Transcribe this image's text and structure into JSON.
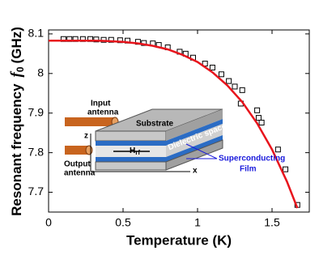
{
  "chart_data": {
    "type": "scatter",
    "xlabel": "Temperature (K)",
    "ylabel": "Resonant frequency",
    "ylabel_symbol": "f",
    "ylabel_sub": "0",
    "ylabel_unit": "(GHz)",
    "xlim": [
      0,
      1.75
    ],
    "ylim": [
      7.65,
      8.11
    ],
    "xticks": [
      0,
      0.5,
      1,
      1.5
    ],
    "yticks": [
      7.7,
      7.8,
      7.9,
      8,
      8.1
    ],
    "series": [
      {
        "type": "scatter",
        "color": "#000000",
        "x": [
          0.1,
          0.14,
          0.18,
          0.23,
          0.28,
          0.32,
          0.37,
          0.42,
          0.48,
          0.53,
          0.6,
          0.64,
          0.7,
          0.74,
          0.8,
          0.88,
          0.92,
          0.97,
          1.05,
          1.1,
          1.16,
          1.21,
          1.25,
          1.3,
          1.29,
          1.4,
          1.41,
          1.43,
          1.54,
          1.59,
          1.67
        ],
        "values": [
          8.087,
          8.087,
          8.087,
          8.087,
          8.087,
          8.086,
          8.085,
          8.085,
          8.084,
          8.083,
          8.08,
          8.077,
          8.076,
          8.072,
          8.066,
          8.055,
          8.05,
          8.04,
          8.025,
          8.015,
          7.998,
          7.981,
          7.967,
          7.958,
          7.924,
          7.907,
          7.888,
          7.876,
          7.808,
          7.758,
          7.668
        ]
      },
      {
        "type": "line",
        "color": "#e8141c",
        "x": [
          0,
          0.1,
          0.2,
          0.3,
          0.4,
          0.5,
          0.6,
          0.7,
          0.8,
          0.9,
          1.0,
          1.1,
          1.2,
          1.3,
          1.4,
          1.5,
          1.6,
          1.67
        ],
        "values": [
          8.083,
          8.083,
          8.083,
          8.083,
          8.082,
          8.08,
          8.076,
          8.07,
          8.061,
          8.047,
          8.029,
          8.003,
          7.97,
          7.928,
          7.874,
          7.808,
          7.727,
          7.66
        ]
      }
    ],
    "inset": {
      "input_antenna": [
        "Input",
        "antenna"
      ],
      "output_antenna": [
        "Output",
        "antenna"
      ],
      "substrate": "Substrate",
      "dielectric": "Dielectric spacer",
      "film": [
        "Superconducting",
        "Film"
      ],
      "h": "H",
      "h_sub": "rf",
      "axis_z": "z",
      "axis_x": "x"
    }
  }
}
